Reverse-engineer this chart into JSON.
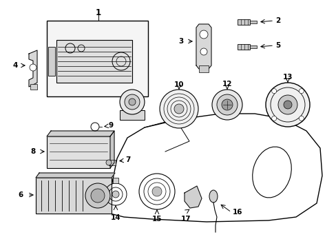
{
  "background_color": "#ffffff",
  "fig_width": 4.89,
  "fig_height": 3.6,
  "dpi": 100,
  "line_color": "#000000",
  "text_color": "#000000",
  "font_size": 7.5
}
